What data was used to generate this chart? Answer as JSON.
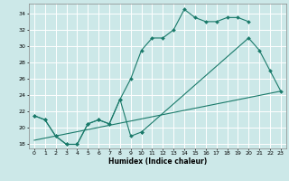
{
  "xlabel": "Humidex (Indice chaleur)",
  "ylabel": "",
  "bg_color": "#cce8e8",
  "grid_color": "#ffffff",
  "line_color": "#1a7a6a",
  "xlim": [
    -0.5,
    23.5
  ],
  "ylim": [
    17.5,
    35.2
  ],
  "xticks": [
    0,
    1,
    2,
    3,
    4,
    5,
    6,
    7,
    8,
    9,
    10,
    11,
    12,
    13,
    14,
    15,
    16,
    17,
    18,
    19,
    20,
    21,
    22,
    23
  ],
  "yticks": [
    18,
    20,
    22,
    24,
    26,
    28,
    30,
    32,
    34
  ],
  "line1_x": [
    0,
    1,
    2,
    3,
    4,
    5,
    6,
    7,
    8,
    9,
    10,
    11,
    12,
    13,
    14,
    15,
    16,
    17,
    18,
    19,
    20
  ],
  "line1_y": [
    21.5,
    21.0,
    19.0,
    18.0,
    18.0,
    20.5,
    21.0,
    20.5,
    23.5,
    26.0,
    29.5,
    31.0,
    31.0,
    32.0,
    34.5,
    33.5,
    33.0,
    33.0,
    33.5,
    33.5,
    33.0
  ],
  "line2_seg1_x": [
    0,
    1,
    2,
    3,
    4,
    5,
    6,
    7,
    8,
    9,
    10
  ],
  "line2_seg1_y": [
    21.5,
    21.0,
    19.0,
    18.0,
    18.0,
    20.5,
    21.0,
    20.5,
    23.5,
    19.0,
    19.5
  ],
  "line2_seg2_x": [
    10,
    20,
    21,
    22,
    23
  ],
  "line2_seg2_y": [
    19.5,
    31.0,
    29.5,
    27.0,
    24.5
  ],
  "line3_x": [
    0,
    23
  ],
  "line3_y": [
    18.5,
    24.5
  ]
}
